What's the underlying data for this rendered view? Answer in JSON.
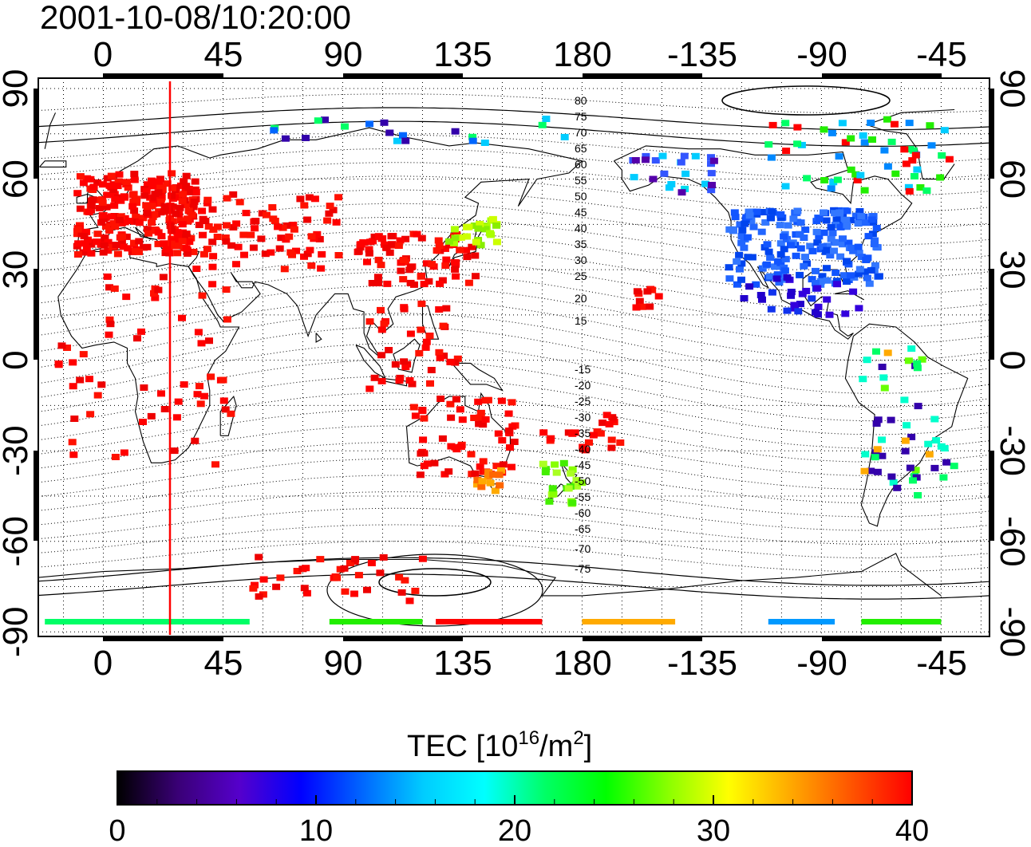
{
  "header": {
    "timestamp": "2001-10-08/10:20:00"
  },
  "map": {
    "lon_ticks": [
      "0",
      "45",
      "90",
      "135",
      "180",
      "-135",
      "-90",
      "-45"
    ],
    "lat_ticks": [
      "90",
      "60",
      "30",
      "0",
      "-30",
      "-60",
      "-90"
    ],
    "mag_lat_labels_north": [
      "80",
      "75",
      "70",
      "65",
      "60",
      "55",
      "50",
      "45",
      "40",
      "35",
      "30",
      "25",
      "20",
      "15"
    ],
    "mag_lat_labels_south": [
      "-15",
      "-20",
      "-25",
      "-30",
      "-35",
      "-40",
      "-45",
      "-50",
      "-55",
      "-60",
      "-65",
      "-70",
      "-75"
    ],
    "terminator_color": "#ff0000"
  },
  "colorbar": {
    "title_main": "TEC  [10",
    "title_sup1": "16",
    "title_mid": "/m",
    "title_sup2": "2",
    "title_end": "]",
    "tick_labels": [
      "0",
      "10",
      "20",
      "30",
      "40"
    ],
    "min": 0,
    "max": 40,
    "colors": [
      "#000000",
      "#3a0077",
      "#5500cc",
      "#0000ff",
      "#0066ff",
      "#00ccff",
      "#00ffff",
      "#00ff66",
      "#00ff00",
      "#88ff00",
      "#ffff00",
      "#ffaa00",
      "#ff5500",
      "#ff0000"
    ]
  }
}
